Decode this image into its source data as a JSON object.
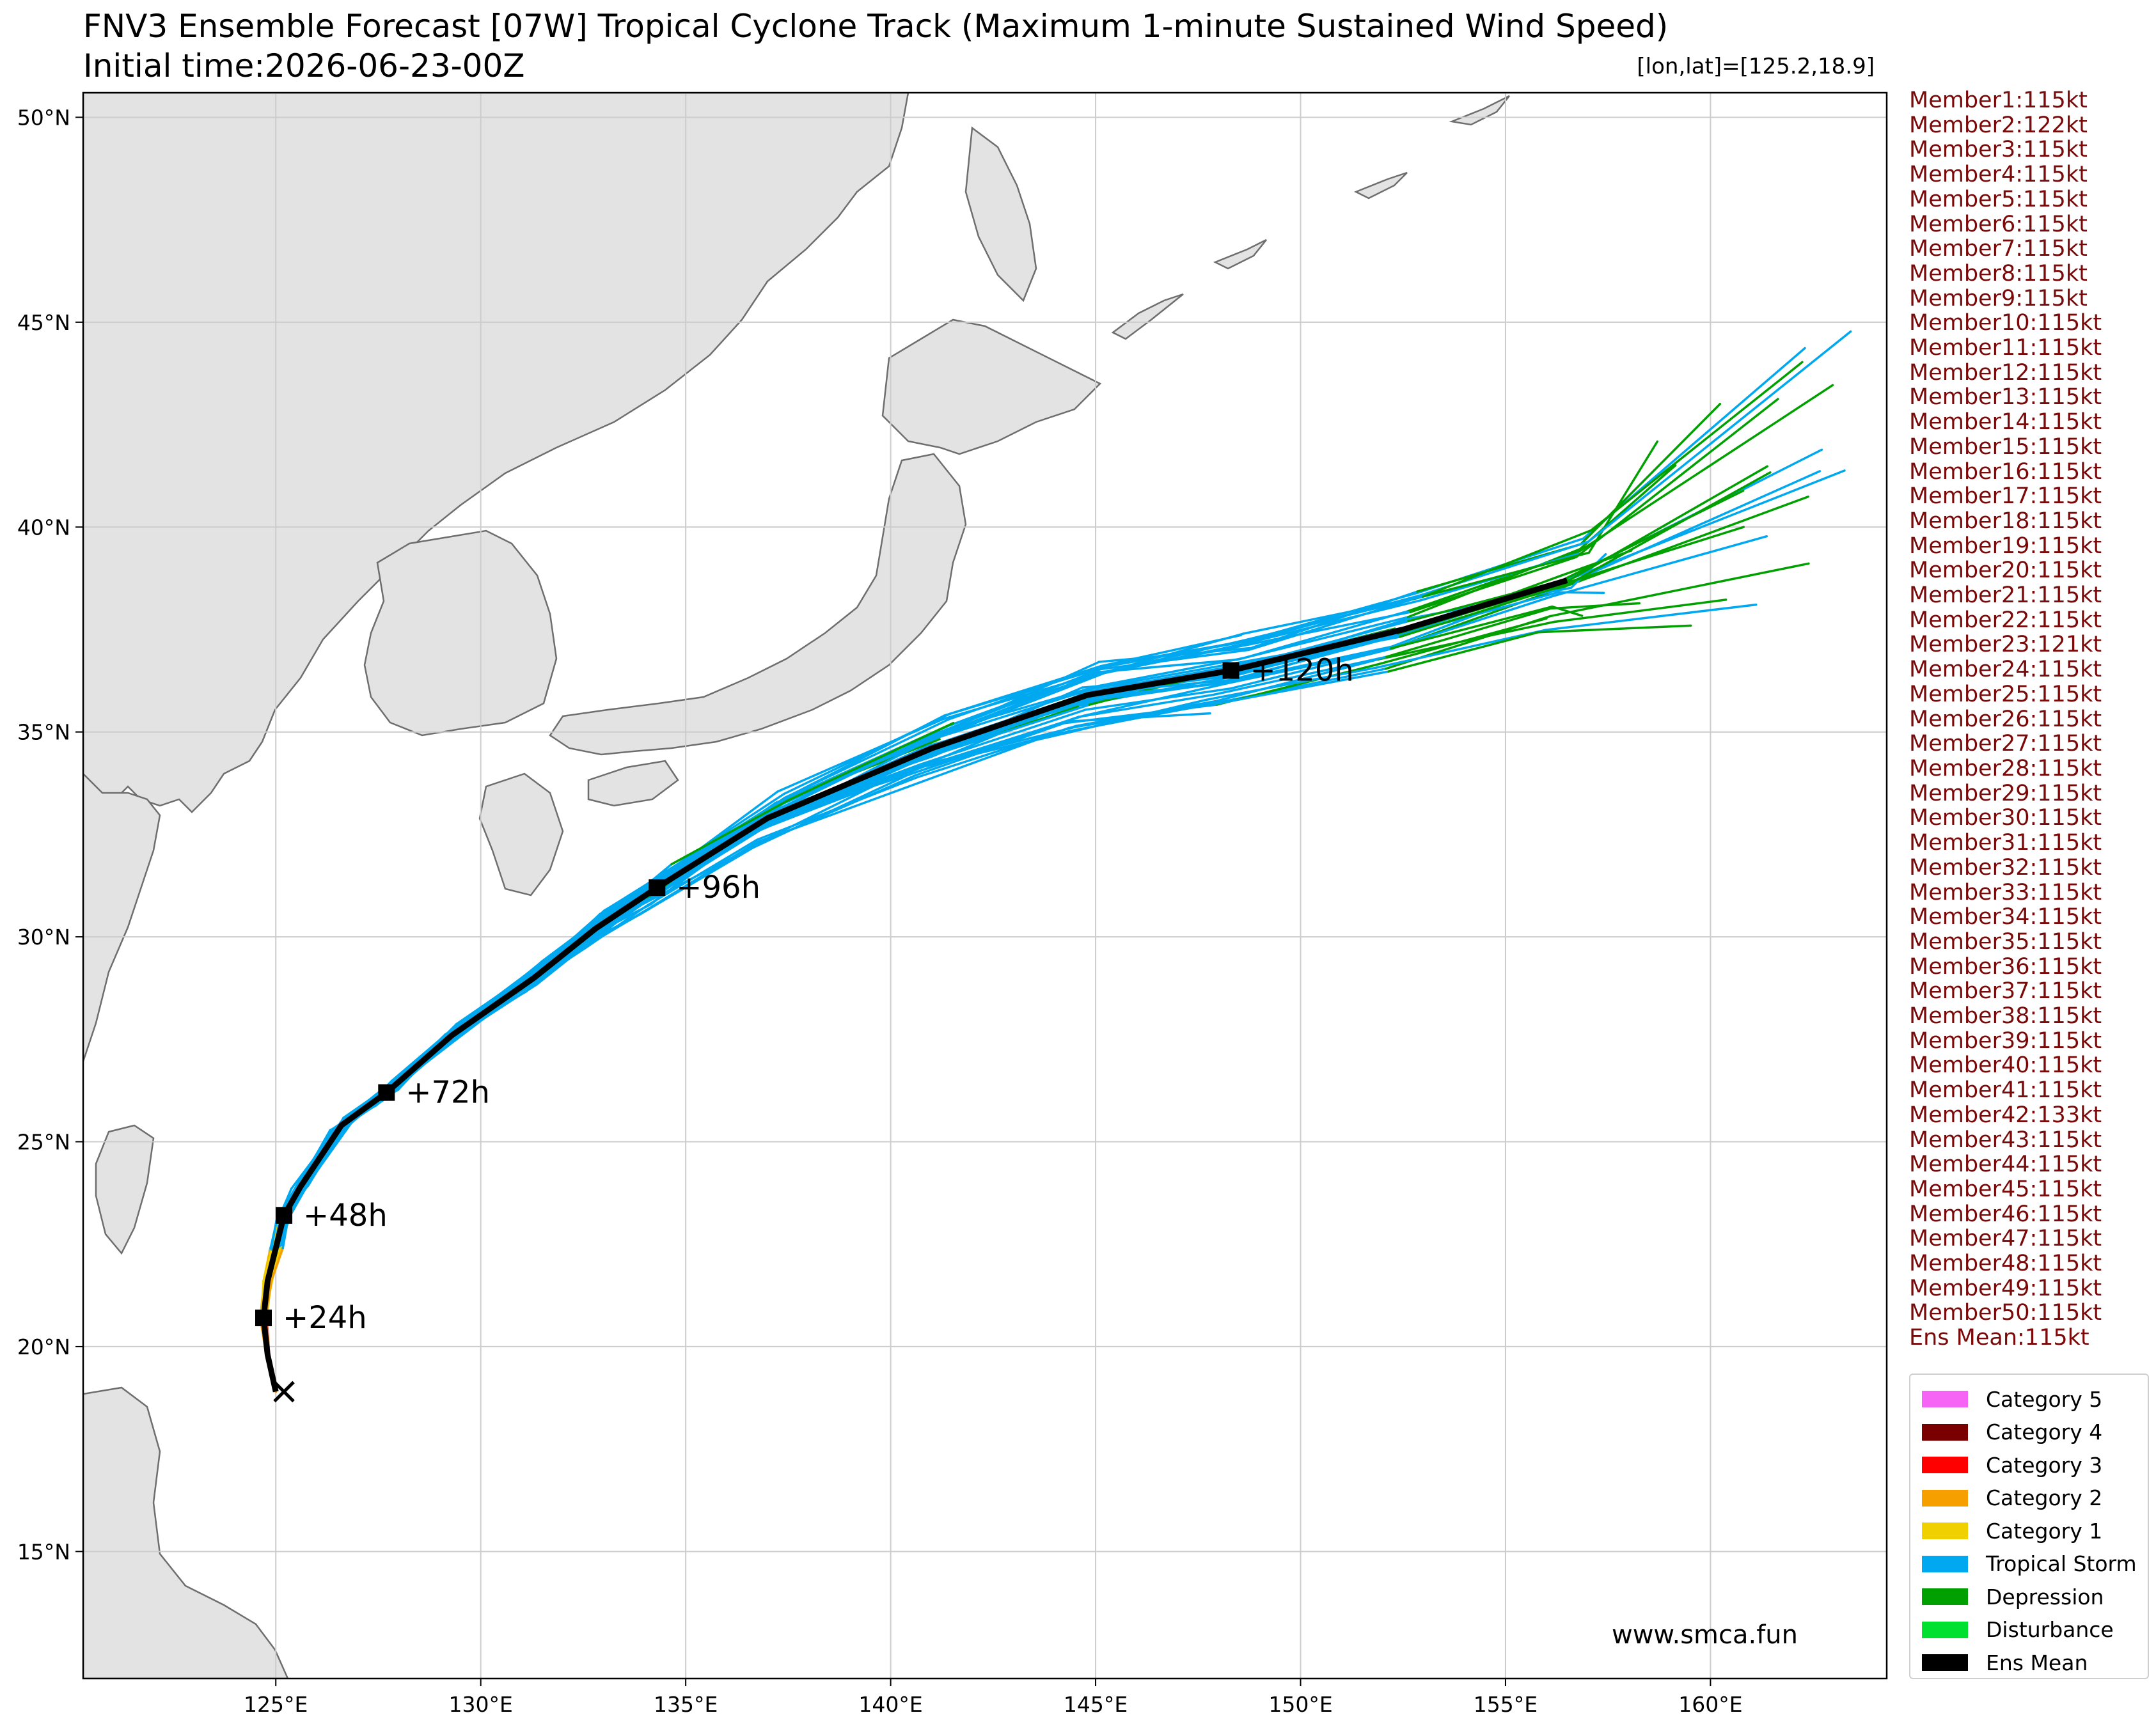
{
  "title": "FNV3 Ensemble Forecast [07W] Tropical Cyclone Track (Maximum 1-minute Sustained Wind Speed)",
  "subtitle": "Initial time:2026-06-23-00Z",
  "position_label": "[lon,lat]=[125.2,18.9]",
  "credit": "www.smca.fun",
  "axes": {
    "lon_ticks": [
      "125°E",
      "130°E",
      "135°E",
      "140°E",
      "145°E",
      "150°E",
      "155°E",
      "160°E"
    ],
    "lat_ticks": [
      "15°N",
      "20°N",
      "25°N",
      "30°N",
      "35°N",
      "40°N",
      "45°N",
      "50°N"
    ],
    "lon_range": [
      120.3,
      164.3
    ],
    "lat_range": [
      11.9,
      50.6
    ]
  },
  "members": [
    "Member1:115kt",
    "Member2:122kt",
    "Member3:115kt",
    "Member4:115kt",
    "Member5:115kt",
    "Member6:115kt",
    "Member7:115kt",
    "Member8:115kt",
    "Member9:115kt",
    "Member10:115kt",
    "Member11:115kt",
    "Member12:115kt",
    "Member13:115kt",
    "Member14:115kt",
    "Member15:115kt",
    "Member16:115kt",
    "Member17:115kt",
    "Member18:115kt",
    "Member19:115kt",
    "Member20:115kt",
    "Member21:115kt",
    "Member22:115kt",
    "Member23:121kt",
    "Member24:115kt",
    "Member25:115kt",
    "Member26:115kt",
    "Member27:115kt",
    "Member28:115kt",
    "Member29:115kt",
    "Member30:115kt",
    "Member31:115kt",
    "Member32:115kt",
    "Member33:115kt",
    "Member34:115kt",
    "Member35:115kt",
    "Member36:115kt",
    "Member37:115kt",
    "Member38:115kt",
    "Member39:115kt",
    "Member40:115kt",
    "Member41:115kt",
    "Member42:133kt",
    "Member43:115kt",
    "Member44:115kt",
    "Member45:115kt",
    "Member46:115kt",
    "Member47:115kt",
    "Member48:115kt",
    "Member49:115kt",
    "Member50:115kt",
    "Ens Mean:115kt"
  ],
  "legend": [
    {
      "label": "Category 5",
      "color": "#f564f5"
    },
    {
      "label": "Category 4",
      "color": "#7a0000"
    },
    {
      "label": "Category 3",
      "color": "#ff0000"
    },
    {
      "label": "Category 2",
      "color": "#f5a000"
    },
    {
      "label": "Category 1",
      "color": "#f0d000"
    },
    {
      "label": "Tropical Storm",
      "color": "#00a8f0"
    },
    {
      "label": "Depression",
      "color": "#00a000"
    },
    {
      "label": "Disturbance",
      "color": "#00e030"
    },
    {
      "label": "Ens Mean",
      "color": "#000000"
    }
  ],
  "ens_mean_track": [
    [
      125.0,
      18.9
    ],
    [
      124.8,
      19.8
    ],
    [
      124.7,
      20.7
    ],
    [
      124.8,
      21.6
    ],
    [
      125.0,
      22.4
    ],
    [
      125.2,
      23.2
    ],
    [
      125.6,
      23.9
    ],
    [
      126.6,
      25.4
    ],
    [
      127.7,
      26.2
    ],
    [
      129.3,
      27.6
    ],
    [
      131.3,
      29.0
    ],
    [
      132.8,
      30.2
    ],
    [
      134.3,
      31.2
    ],
    [
      137.0,
      32.9
    ],
    [
      141.0,
      34.6
    ],
    [
      144.8,
      35.9
    ],
    [
      148.3,
      36.5
    ],
    [
      152.5,
      37.5
    ],
    [
      156.5,
      38.7
    ]
  ],
  "timestamps": [
    {
      "label": "+24h",
      "lon": 124.7,
      "lat": 20.7
    },
    {
      "label": "+48h",
      "lon": 125.2,
      "lat": 23.2
    },
    {
      "label": "+72h",
      "lon": 127.7,
      "lat": 26.2
    },
    {
      "label": "+96h",
      "lon": 134.3,
      "lat": 31.2
    },
    {
      "label": "+120h",
      "lon": 148.3,
      "lat": 36.5
    }
  ],
  "initial_position": {
    "lon": 125.2,
    "lat": 18.9
  }
}
